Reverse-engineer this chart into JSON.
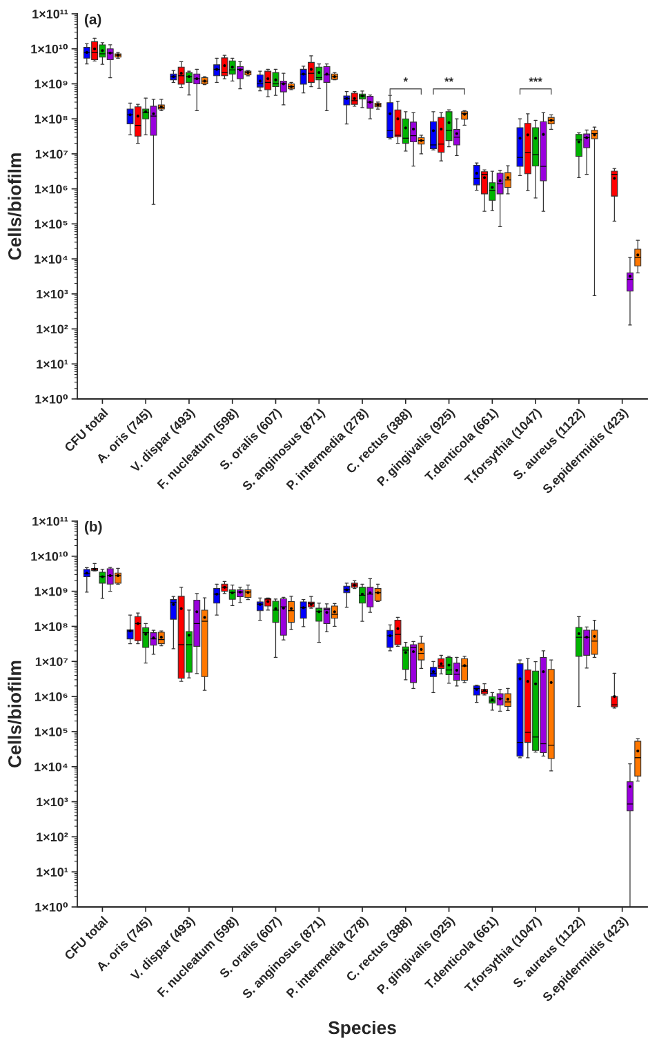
{
  "chart_data": [
    {
      "type": "box",
      "title": "(a)",
      "ylabel": "Cells/biofilm",
      "log": true,
      "ylim": [
        1,
        100000000000.0
      ],
      "yticks": [
        {
          "value": 1,
          "label": "1×10⁰"
        },
        {
          "value": 10,
          "label": "1×10¹"
        },
        {
          "value": 100,
          "label": "1×10²"
        },
        {
          "value": 1000,
          "label": "1×10³"
        },
        {
          "value": 10000,
          "label": "1×10⁴"
        },
        {
          "value": 100000,
          "label": "1×10⁵"
        },
        {
          "value": 1000000,
          "label": "1×10⁶"
        },
        {
          "value": 10000000,
          "label": "1×10⁷"
        },
        {
          "value": 100000000,
          "label": "1×10⁸"
        },
        {
          "value": 1000000000,
          "label": "1×10⁹"
        },
        {
          "value": 10000000000,
          "label": "1×10¹⁰"
        },
        {
          "value": 100000000000,
          "label": "1×10¹¹"
        }
      ],
      "categories": [
        "CFU total",
        "A. oris (745)",
        "V. dispar (493)",
        "F. nucleatum (598)",
        "S. oralis (607)",
        "S. anginosus (871)",
        "P. intermedia (278)",
        "C. rectus (388)",
        "P. gingivalis (925)",
        "T.denticola (661)",
        "T.forsythia (1047)",
        "S. aureus (1122)",
        "S.epidermidis (423)"
      ],
      "annotations": [
        "*",
        "**",
        "***"
      ],
      "series": [
        {
          "color": "#0000ff",
          "boxes": [
            {
              "low": 3700000000.0,
              "q1": 5400000000.0,
              "median": 7900000000.0,
              "q3": 11000000000.0,
              "high": 14000000000.0,
              "mean": 7900000000.0
            },
            {
              "low": 35000000.0,
              "q1": 72000000.0,
              "median": 130000000.0,
              "q3": 190000000.0,
              "high": 280000000.0,
              "mean": 130000000.0
            },
            {
              "low": 1100000000.0,
              "q1": 1300000000.0,
              "median": 1600000000.0,
              "q3": 1900000000.0,
              "high": 2400000000.0,
              "mean": 1600000000.0
            },
            {
              "low": 1100000000.0,
              "q1": 1700000000.0,
              "median": 2600000000.0,
              "q3": 3500000000.0,
              "high": 5400000000.0,
              "mean": 2600000000.0
            },
            {
              "low": 630000000.0,
              "q1": 810000000.0,
              "median": 1000000000.0,
              "q3": 1800000000.0,
              "high": 2300000000.0,
              "mean": 1200000000.0
            },
            {
              "low": 550000000.0,
              "q1": 980000000.0,
              "median": 1900000000.0,
              "q3": 2600000000.0,
              "high": 3200000000.0,
              "mean": 1900000000.0
            },
            {
              "low": 71000000.0,
              "q1": 250000000.0,
              "median": 380000000.0,
              "q3": 450000000.0,
              "high": 600000000.0,
              "mean": 380000000.0
            },
            {
              "low": 27000000.0,
              "q1": 29000000.0,
              "median": 46000000.0,
              "q3": 290000000.0,
              "high": 470000000.0,
              "mean": 140000000.0
            },
            {
              "low": 13000000.0,
              "q1": 14000000.0,
              "median": 18000000.0,
              "q3": 83000000.0,
              "high": 160000000.0,
              "mean": 46000000.0
            },
            {
              "low": 910000.0,
              "q1": 1300000.0,
              "median": 2000000.0,
              "q3": 4700000.0,
              "high": 5500000.0,
              "mean": 2800000.0
            },
            {
              "low": 2400000.0,
              "q1": 4400000.0,
              "median": 7900000.0,
              "q3": 56000000.0,
              "high": 100000000.0,
              "mean": 28000000.0
            },
            null,
            null
          ]
        },
        {
          "color": "#ff0000",
          "boxes": [
            {
              "low": 4500000000.0,
              "q1": 4900000000.0,
              "median": 7800000000.0,
              "q3": 16000000000.0,
              "high": 20000000000.0,
              "mean": 10000000000.0
            },
            {
              "low": 20000000.0,
              "q1": 32000000.0,
              "median": 65000000.0,
              "q3": 220000000.0,
              "high": 260000000.0,
              "mean": 120000000.0
            },
            {
              "low": 790000000.0,
              "q1": 980000000.0,
              "median": 1700000000.0,
              "q3": 3000000000.0,
              "high": 4300000000.0,
              "mean": 2000000000.0
            },
            {
              "low": 1400000000.0,
              "q1": 1700000000.0,
              "median": 2100000000.0,
              "q3": 5500000000.0,
              "high": 6500000000.0,
              "mean": 3300000000.0
            },
            {
              "low": 430000000.0,
              "q1": 680000000.0,
              "median": 1100000000.0,
              "q3": 2300000000.0,
              "high": 2600000000.0,
              "mean": 1400000000.0
            },
            {
              "low": 830000000.0,
              "q1": 1100000000.0,
              "median": 2000000000.0,
              "q3": 4100000000.0,
              "high": 6300000000.0,
              "mean": 2600000000.0
            },
            {
              "low": 230000000.0,
              "q1": 260000000.0,
              "median": 330000000.0,
              "q3": 540000000.0,
              "high": 600000000.0,
              "mean": 380000000.0
            },
            {
              "low": 20000000.0,
              "q1": 31000000.0,
              "median": 34000000.0,
              "q3": 180000000.0,
              "high": 320000000.0,
              "mean": 100000000.0
            },
            {
              "low": 6300000.0,
              "q1": 11000000.0,
              "median": 19000000.0,
              "q3": 110000000.0,
              "high": 150000000.0,
              "mean": 51000000.0
            },
            {
              "low": 230000.0,
              "q1": 720000.0,
              "median": 2600000.0,
              "q3": 3100000.0,
              "high": 3500000.0,
              "mean": 2100000.0
            },
            {
              "low": 890000.0,
              "q1": 2700000.0,
              "median": 11000000.0,
              "q3": 74000000.0,
              "high": 140000000.0,
              "mean": 35000000.0
            },
            null,
            {
              "low": 120000.0,
              "q1": 620000.0,
              "median": 2600000.0,
              "q3": 3200000.0,
              "high": 3800000.0,
              "mean": 2000000.0
            }
          ]
        },
        {
          "color": "#00b400",
          "boxes": [
            {
              "low": 3600000000.0,
              "q1": 5800000000.0,
              "median": 7200000000.0,
              "q3": 13000000000.0,
              "high": 15000000000.0,
              "mean": 8900000000.0
            },
            {
              "low": 35000000.0,
              "q1": 100000000.0,
              "median": 150000000.0,
              "q3": 190000000.0,
              "high": 390000000.0,
              "mean": 160000000.0
            },
            {
              "low": 480000000.0,
              "q1": 1100000000.0,
              "median": 1600000000.0,
              "q3": 2100000000.0,
              "high": 2300000000.0,
              "mean": 1600000000.0
            },
            {
              "low": 1200000000.0,
              "q1": 1900000000.0,
              "median": 2500000000.0,
              "q3": 4500000000.0,
              "high": 5400000000.0,
              "mean": 3000000000.0
            },
            {
              "low": 470000000.0,
              "q1": 830000000.0,
              "median": 1000000000.0,
              "q3": 2100000000.0,
              "high": 2600000000.0,
              "mean": 1300000000.0
            },
            {
              "low": 740000000.0,
              "q1": 1300000000.0,
              "median": 1500000000.0,
              "q3": 3000000000.0,
              "high": 3700000000.0,
              "mean": 2100000000.0
            },
            {
              "low": 210000000.0,
              "q1": 370000000.0,
              "median": 450000000.0,
              "q3": 510000000.0,
              "high": 620000000.0,
              "mean": 450000000.0
            },
            {
              "low": 12000000.0,
              "q1": 20000000.0,
              "median": 28000000.0,
              "q3": 100000000.0,
              "high": 160000000.0,
              "mean": 55000000.0
            },
            {
              "low": 16000000.0,
              "q1": 24000000.0,
              "median": 47000000.0,
              "q3": 160000000.0,
              "high": 180000000.0,
              "mean": 78000000.0
            },
            {
              "low": 240000.0,
              "q1": 470000.0,
              "median": 910000.0,
              "q3": 1500000.0,
              "high": 3200000.0,
              "mean": 1100000.0
            },
            {
              "low": 550000.0,
              "q1": 4500000.0,
              "median": 9500000.0,
              "q3": 56000000.0,
              "high": 91000000.0,
              "mean": 28000000.0
            },
            {
              "low": 2100000.0,
              "q1": 8500000.0,
              "median": 25000000.0,
              "q3": 36000000.0,
              "high": 40000000.0,
              "mean": 22000000.0
            },
            null
          ]
        },
        {
          "color": "#9900dd",
          "boxes": [
            {
              "low": 1500000000.0,
              "q1": 4900000000.0,
              "median": 7600000000.0,
              "q3": 10000000000.0,
              "high": 13000000000.0,
              "mean": 7600000000.0
            },
            {
              "low": 360000.0,
              "q1": 34000000.0,
              "median": 120000000.0,
              "q3": 230000000.0,
              "high": 360000000.0,
              "mean": 140000000.0
            },
            {
              "low": 170000000.0,
              "q1": 1000000000.0,
              "median": 1400000000.0,
              "q3": 1900000000.0,
              "high": 2600000000.0,
              "mean": 1400000000.0
            },
            {
              "low": 720000000.0,
              "q1": 1400000000.0,
              "median": 2600000000.0,
              "q3": 3100000000.0,
              "high": 4300000000.0,
              "mean": 2500000000.0
            },
            {
              "low": 250000000.0,
              "q1": 590000000.0,
              "median": 1000000000.0,
              "q3": 1200000000.0,
              "high": 2000000000.0,
              "mean": 1000000000.0
            },
            {
              "low": 170000000.0,
              "q1": 1100000000.0,
              "median": 1800000000.0,
              "q3": 3100000000.0,
              "high": 3700000000.0,
              "mean": 1900000000.0
            },
            {
              "low": 100000000.0,
              "q1": 200000000.0,
              "median": 300000000.0,
              "q3": 440000000.0,
              "high": 480000000.0,
              "mean": 300000000.0
            },
            {
              "low": 4500000.0,
              "q1": 22000000.0,
              "median": 33000000.0,
              "q3": 81000000.0,
              "high": 150000000.0,
              "mean": 51000000.0
            },
            {
              "low": 8900000.0,
              "q1": 18000000.0,
              "median": 30000000.0,
              "q3": 50000000.0,
              "high": 100000000.0,
              "mean": 38000000.0
            },
            {
              "low": 83000.0,
              "q1": 720000.0,
              "median": 1400000.0,
              "q3": 2800000.0,
              "high": 3400000.0,
              "mean": 1700000.0
            },
            {
              "low": 230000.0,
              "q1": 1700000.0,
              "median": 4400000.0,
              "q3": 83000000.0,
              "high": 150000000.0,
              "mean": 36000000.0
            },
            {
              "low": 2600000.0,
              "q1": 15000000.0,
              "median": 29000000.0,
              "q3": 37000000.0,
              "high": 48000000.0,
              "mean": 29000000.0
            },
            {
              "low": 130,
              "q1": 1200,
              "median": 2600,
              "q3": 4000,
              "high": 11000,
              "mean": 3200
            }
          ]
        },
        {
          "color": "#ff7700",
          "boxes": [
            {
              "low": 5400000000.0,
              "q1": 5800000000.0,
              "median": 6600000000.0,
              "q3": 7200000000.0,
              "high": 7900000000.0,
              "mean": 6600000000.0
            },
            {
              "low": 170000000.0,
              "q1": 190000000.0,
              "median": 210000000.0,
              "q3": 250000000.0,
              "high": 360000000.0,
              "mean": 220000000.0
            },
            {
              "low": 950000000.0,
              "q1": 1000000000.0,
              "median": 1200000000.0,
              "q3": 1500000000.0,
              "high": 1600000000.0,
              "mean": 1200000000.0
            },
            {
              "low": 1700000000.0,
              "q1": 1800000000.0,
              "median": 2100000000.0,
              "q3": 2300000000.0,
              "high": 2400000000.0,
              "mean": 2100000000.0
            },
            {
              "low": 680000000.0,
              "q1": 720000000.0,
              "median": 830000000.0,
              "q3": 1000000000.0,
              "high": 1100000000.0,
              "mean": 830000000.0
            },
            {
              "low": 1300000000.0,
              "q1": 1350000000.0,
              "median": 1600000000.0,
              "q3": 1900000000.0,
              "high": 2100000000.0,
              "mean": 1600000000.0
            },
            {
              "low": 190000000.0,
              "q1": 220000000.0,
              "median": 250000000.0,
              "q3": 280000000.0,
              "high": 300000000.0,
              "mean": 250000000.0
            },
            {
              "low": 10000000.0,
              "q1": 19000000.0,
              "median": 24000000.0,
              "q3": 29000000.0,
              "high": 34000000.0,
              "mean": 24000000.0
            },
            {
              "low": 66000000.0,
              "q1": 98000000.0,
              "median": 140000000.0,
              "q3": 160000000.0,
              "high": 170000000.0,
              "mean": 135000000.0
            },
            {
              "low": 720000.0,
              "q1": 1100000.0,
              "median": 1800000.0,
              "q3": 2900000.0,
              "high": 4600000.0,
              "mean": 2100000.0
            },
            {
              "low": 50000000.0,
              "q1": 72000000.0,
              "median": 91000000.0,
              "q3": 110000000.0,
              "high": 130000000.0,
              "mean": 91000000.0
            },
            {
              "low": 890,
              "q1": 27000000.0,
              "median": 38000000.0,
              "q3": 47000000.0,
              "high": 58000000.0,
              "mean": 35000000.0
            },
            {
              "low": 4000,
              "q1": 6300,
              "median": 11000,
              "q3": 19000,
              "high": 34000,
              "mean": 13000
            }
          ]
        }
      ]
    },
    {
      "type": "box",
      "title": "(b)",
      "ylabel": "Cells/biofilm",
      "xlabel": "Species",
      "log": true,
      "ylim": [
        1,
        100000000000.0
      ],
      "yticks": [
        {
          "value": 1,
          "label": "1×10⁰"
        },
        {
          "value": 10,
          "label": "1×10¹"
        },
        {
          "value": 100,
          "label": "1×10²"
        },
        {
          "value": 1000,
          "label": "1×10³"
        },
        {
          "value": 10000,
          "label": "1×10⁴"
        },
        {
          "value": 100000,
          "label": "1×10⁵"
        },
        {
          "value": 1000000,
          "label": "1×10⁶"
        },
        {
          "value": 10000000,
          "label": "1×10⁷"
        },
        {
          "value": 100000000,
          "label": "1×10⁸"
        },
        {
          "value": 1000000000,
          "label": "1×10⁹"
        },
        {
          "value": 10000000000,
          "label": "1×10¹⁰"
        },
        {
          "value": 100000000000,
          "label": "1×10¹¹"
        }
      ],
      "categories": [
        "CFU total",
        "A. oris (745)",
        "V. dispar (493)",
        "F. nucleatum (598)",
        "S. oralis (607)",
        "S. anginosus (871)",
        "P. intermedia (278)",
        "C. rectus (388)",
        "P. gingivalis (925)",
        "T.denticola (661)",
        "T.forsythia (1047)",
        "S. aureus (1122)",
        "S.epidermidis (423)"
      ],
      "series": [
        {
          "color": "#0000ff",
          "boxes": [
            {
              "low": 950000000.0,
              "q1": 2600000000.0,
              "median": 3200000000.0,
              "q3": 4200000000.0,
              "high": 4700000000.0,
              "mean": 3300000000.0
            },
            {
              "low": 32000000.0,
              "q1": 44000000.0,
              "median": 74000000.0,
              "q3": 79000000.0,
              "high": 210000000.0,
              "mean": 74000000.0
            },
            {
              "low": 23000000.0,
              "q1": 160000000.0,
              "median": 480000000.0,
              "q3": 580000000.0,
              "high": 710000000.0,
              "mean": 420000000.0
            },
            {
              "low": 210000000.0,
              "q1": 460000000.0,
              "median": 830000000.0,
              "q3": 1200000000.0,
              "high": 1600000000.0,
              "mean": 830000000.0
            },
            {
              "low": 150000000.0,
              "q1": 280000000.0,
              "median": 430000000.0,
              "q3": 500000000.0,
              "high": 640000000.0,
              "mean": 420000000.0
            },
            {
              "low": 98000000.0,
              "q1": 170000000.0,
              "median": 340000000.0,
              "q3": 500000000.0,
              "high": 580000000.0,
              "mean": 340000000.0
            },
            {
              "low": 350000000.0,
              "q1": 910000000.0,
              "median": 1100000000.0,
              "q3": 1400000000.0,
              "high": 1700000000.0,
              "mean": 1100000000.0
            },
            {
              "low": 20000000.0,
              "q1": 25000000.0,
              "median": 54000000.0,
              "q3": 77000000.0,
              "high": 110000000.0,
              "mean": 54000000.0
            },
            {
              "low": 1300000.0,
              "q1": 3700000.0,
              "median": 4500000.0,
              "q3": 6800000.0,
              "high": 10000000.0,
              "mean": 5100000.0
            },
            {
              "low": 680000.0,
              "q1": 1100000.0,
              "median": 1700000.0,
              "q3": 2000000.0,
              "high": 2100000.0,
              "mean": 1600000.0
            },
            {
              "low": 18000.0,
              "q1": 20000.0,
              "median": 49000.0,
              "q3": 8600000.0,
              "high": 11000000.0,
              "mean": 3200000.0
            },
            null,
            null
          ]
        },
        {
          "color": "#ff0000",
          "boxes": [
            {
              "low": 3800000000.0,
              "q1": 3900000000.0,
              "median": 4300000000.0,
              "q3": 4500000000.0,
              "high": 6200000000.0,
              "mean": 4300000000.0
            },
            {
              "low": 32000000.0,
              "q1": 39000000.0,
              "median": 120000000.0,
              "q3": 190000000.0,
              "high": 240000000.0,
              "mean": 120000000.0
            },
            {
              "low": 2700000.0,
              "q1": 3300000.0,
              "median": 30000000.0,
              "q3": 720000000.0,
              "high": 1300000000.0,
              "mean": 320000000.0
            },
            {
              "low": 860000000.0,
              "q1": 1000000000.0,
              "median": 1300000000.0,
              "q3": 1600000000.0,
              "high": 1900000000.0,
              "mean": 1300000000.0
            },
            {
              "low": 290000000.0,
              "q1": 380000000.0,
              "median": 600000000.0,
              "q3": 620000000.0,
              "high": 640000000.0,
              "mean": 510000000.0
            },
            {
              "low": 330000000.0,
              "q1": 360000000.0,
              "median": 450000000.0,
              "q3": 490000000.0,
              "high": 710000000.0,
              "mean": 420000000.0
            },
            {
              "low": 1200000000.0,
              "q1": 1300000000.0,
              "median": 1500000000.0,
              "q3": 1700000000.0,
              "high": 2000000000.0,
              "mean": 1500000000.0
            },
            {
              "low": 27000000.0,
              "q1": 30000000.0,
              "median": 59000000.0,
              "q3": 150000000.0,
              "high": 180000000.0,
              "mean": 86000000.0
            },
            {
              "low": 4400000.0,
              "q1": 6300000.0,
              "median": 7400000.0,
              "q3": 12000000.0,
              "high": 15000000.0,
              "mean": 8600000.0
            },
            {
              "low": 1100000.0,
              "q1": 1200000.0,
              "median": 1400000.0,
              "q3": 1600000.0,
              "high": 2300000.0,
              "mean": 1500000.0
            },
            {
              "low": 18000.0,
              "q1": 49000.0,
              "median": 95000.0,
              "q3": 5700000.0,
              "high": 12000000.0,
              "mean": 2700000.0
            },
            null,
            {
              "low": 470000.0,
              "q1": 510000.0,
              "median": 580000.0,
              "q3": 1000000.0,
              "high": 4600000.0,
              "mean": 1000000.0
            }
          ]
        },
        {
          "color": "#00b400",
          "boxes": [
            {
              "low": 630000000.0,
              "q1": 1700000000.0,
              "median": 2600000000.0,
              "q3": 3500000000.0,
              "high": 4200000000.0,
              "mean": 2600000000.0
            },
            {
              "low": 9000000.0,
              "q1": 25000000.0,
              "median": 66000000.0,
              "q3": 91000000.0,
              "high": 120000000.0,
              "mean": 60000000.0
            },
            {
              "low": 3400000.0,
              "q1": 4900000.0,
              "median": 30000000.0,
              "q3": 71000000.0,
              "high": 290000000.0,
              "mean": 56000000.0
            },
            {
              "low": 390000000.0,
              "q1": 590000000.0,
              "median": 930000000.0,
              "q3": 1100000000.0,
              "high": 1500000000.0,
              "mean": 900000000.0
            },
            {
              "low": 13000000.0,
              "q1": 130000000.0,
              "median": 290000000.0,
              "q3": 520000000.0,
              "high": 600000000.0,
              "mean": 320000000.0
            },
            {
              "low": 35000000.0,
              "q1": 140000000.0,
              "median": 270000000.0,
              "q3": 330000000.0,
              "high": 460000000.0,
              "mean": 260000000.0
            },
            {
              "low": 140000000.0,
              "q1": 460000000.0,
              "median": 770000000.0,
              "q3": 1300000000.0,
              "high": 1600000000.0,
              "mean": 830000000.0
            },
            {
              "low": 3000000.0,
              "q1": 5900000.0,
              "median": 21000000.0,
              "q3": 26000000.0,
              "high": 35000000.0,
              "mean": 18000000.0
            },
            {
              "low": 2400000.0,
              "q1": 4200000.0,
              "median": 5700000.0,
              "q3": 13000000.0,
              "high": 14000000.0,
              "mean": 7900000.0
            },
            {
              "low": 410000.0,
              "q1": 650000.0,
              "median": 740000.0,
              "q3": 990000.0,
              "high": 1300000.0,
              "mean": 810000.0
            },
            {
              "low": 26000.0,
              "q1": 29000.0,
              "median": 70000.0,
              "q3": 5300000.0,
              "high": 9800000.0,
              "mean": 2300000.0
            },
            {
              "low": 520000.0,
              "q1": 14000000.0,
              "median": 49000000.0,
              "q3": 93000000.0,
              "high": 190000000.0,
              "mean": 62000000.0
            },
            null
          ]
        },
        {
          "color": "#9900dd",
          "boxes": [
            {
              "low": 1000000000.0,
              "q1": 1600000000.0,
              "median": 2800000000.0,
              "q3": 4400000000.0,
              "high": 4800000000.0,
              "mean": 2800000000.0
            },
            {
              "low": 16000000.0,
              "q1": 29000000.0,
              "median": 44000000.0,
              "q3": 66000000.0,
              "high": 77000000.0,
              "mean": 47000000.0
            },
            {
              "low": 4500000.0,
              "q1": 27000000.0,
              "median": 120000000.0,
              "q3": 560000000.0,
              "high": 860000000.0,
              "mean": 260000000.0
            },
            {
              "low": 480000000.0,
              "q1": 700000000.0,
              "median": 950000000.0,
              "q3": 1100000000.0,
              "high": 1300000000.0,
              "mean": 950000000.0
            },
            {
              "low": 41000000.0,
              "q1": 56000000.0,
              "median": 360000000.0,
              "q3": 610000000.0,
              "high": 670000000.0,
              "mean": 330000000.0
            },
            {
              "low": 70000000.0,
              "q1": 120000000.0,
              "median": 300000000.0,
              "q3": 330000000.0,
              "high": 440000000.0,
              "mean": 250000000.0
            },
            {
              "low": 250000000.0,
              "q1": 360000000.0,
              "median": 830000000.0,
              "q3": 1300000000.0,
              "high": 2300000000.0,
              "mean": 910000000.0
            },
            {
              "low": 1700000.0,
              "q1": 2500000.0,
              "median": 25000000.0,
              "q3": 30000000.0,
              "high": 37000000.0,
              "mean": 19000000.0
            },
            {
              "low": 2000000.0,
              "q1": 2900000.0,
              "median": 4300000.0,
              "q3": 9000000.0,
              "high": 13000000.0,
              "mean": 5600000.0
            },
            {
              "low": 380000.0,
              "q1": 570000.0,
              "median": 860000.0,
              "q3": 1200000.0,
              "high": 1600000.0,
              "mean": 860000.0
            },
            {
              "low": 20000.0,
              "q1": 25000.0,
              "median": 45000.0,
              "q3": 13000000.0,
              "high": 20000000.0,
              "mean": 5100000.0
            },
            {
              "low": 6500000.0,
              "q1": 15000000.0,
              "median": 49000000.0,
              "q3": 78000000.0,
              "high": 96000000.0,
              "mean": 49000000.0
            },
            {
              "low": 1,
              "q1": 550,
              "median": 860,
              "q3": 3700,
              "high": 12000,
              "mean": 2700
            }
          ]
        },
        {
          "color": "#ff7700",
          "boxes": [
            {
              "low": 1600000000.0,
              "q1": 1700000000.0,
              "median": 2800000000.0,
              "q3": 3300000000.0,
              "high": 4500000000.0,
              "mean": 2800000000.0
            },
            {
              "low": 28000000.0,
              "q1": 32000000.0,
              "median": 42000000.0,
              "q3": 68000000.0,
              "high": 74000000.0,
              "mean": 49000000.0
            },
            {
              "low": 1500000.0,
              "q1": 3700000.0,
              "median": 140000000.0,
              "q3": 290000000.0,
              "high": 650000000.0,
              "mean": 180000000.0
            },
            {
              "low": 580000000.0,
              "q1": 670000000.0,
              "median": 950000000.0,
              "q3": 1100000000.0,
              "high": 1500000000.0,
              "mean": 930000000.0
            },
            {
              "low": 81000000.0,
              "q1": 130000000.0,
              "median": 280000000.0,
              "q3": 510000000.0,
              "high": 720000000.0,
              "mean": 320000000.0
            },
            {
              "low": 100000000.0,
              "q1": 170000000.0,
              "median": 220000000.0,
              "q3": 380000000.0,
              "high": 450000000.0,
              "mean": 260000000.0
            },
            {
              "low": 510000000.0,
              "q1": 540000000.0,
              "median": 910000000.0,
              "q3": 1200000000.0,
              "high": 1600000000.0,
              "mean": 910000000.0
            },
            {
              "low": 6300000.0,
              "q1": 11000000.0,
              "median": 17000000.0,
              "q3": 33000000.0,
              "high": 52000000.0,
              "mean": 22000000.0
            },
            {
              "low": 2500000.0,
              "q1": 2900000.0,
              "median": 7400000.0,
              "q3": 12000000.0,
              "high": 14000000.0,
              "mean": 7600000.0
            },
            {
              "low": 400000.0,
              "q1": 520000.0,
              "median": 700000.0,
              "q3": 1200000.0,
              "high": 1700000.0,
              "mean": 840000.0
            },
            {
              "low": 7600,
              "q1": 17000.0,
              "median": 41000.0,
              "q3": 5900000.0,
              "high": 11000000.0,
              "mean": 2500000.0
            },
            {
              "low": 13000000.0,
              "q1": 16000000.0,
              "median": 38000000.0,
              "q3": 78000000.0,
              "high": 150000000.0,
              "mean": 52000000.0
            },
            {
              "low": 3900,
              "q1": 5400,
              "median": 18000.0,
              "q3": 53000.0,
              "high": 63000.0,
              "mean": 28000.0
            }
          ]
        }
      ]
    }
  ]
}
